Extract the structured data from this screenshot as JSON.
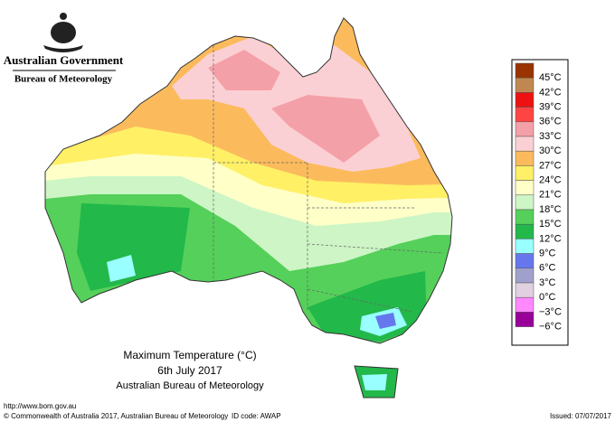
{
  "header": {
    "government": "Australian Government",
    "bureau": "Bureau of Meteorology"
  },
  "legend": {
    "items": [
      {
        "label": "45°C",
        "color": "#993300"
      },
      {
        "label": "42°C",
        "color": "#c08850"
      },
      {
        "label": "39°C",
        "color": "#ee1111"
      },
      {
        "label": "36°C",
        "color": "#ff4444"
      },
      {
        "label": "33°C",
        "color": "#f4a0a8"
      },
      {
        "label": "30°C",
        "color": "#fbd0d4"
      },
      {
        "label": "27°C",
        "color": "#fbbb5c"
      },
      {
        "label": "24°C",
        "color": "#fff066"
      },
      {
        "label": "21°C",
        "color": "#ffffc8"
      },
      {
        "label": "18°C",
        "color": "#cdf5c5"
      },
      {
        "label": "15°C",
        "color": "#55d05a"
      },
      {
        "label": "12°C",
        "color": "#22b84a"
      },
      {
        "label": "9°C",
        "color": "#99ffff"
      },
      {
        "label": "6°C",
        "color": "#6677ee"
      },
      {
        "label": "3°C",
        "color": "#a0a0cc"
      },
      {
        "label": "0°C",
        "color": "#e0d0e0"
      },
      {
        "label": "−3°C",
        "color": "#ff88ff"
      },
      {
        "label": "−6°C",
        "color": "#990099"
      }
    ]
  },
  "caption": {
    "title": "Maximum Temperature (°C)",
    "date": "6th July 2017",
    "source": "Australian Bureau of Meteorology"
  },
  "footer": {
    "url": "http://www.bom.gov.au",
    "copyright": "© Commonwealth of Australia 2017, Australian Bureau of Meteorology",
    "id": "ID code: AWAP",
    "issued": "Issued: 07/07/2017"
  }
}
